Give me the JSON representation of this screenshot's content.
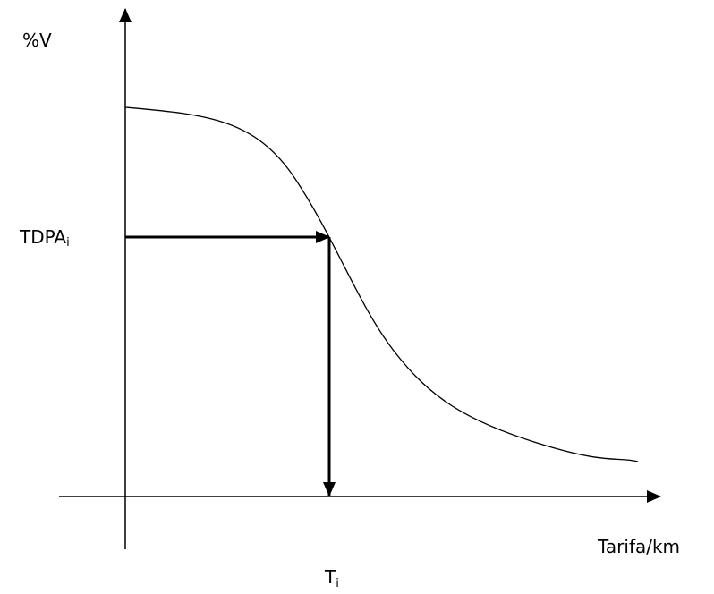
{
  "y_axis_label": "%V",
  "x_axis_label": "Tarifa/km",
  "y_marker": {
    "main": "TDPA",
    "sub": "i"
  },
  "x_marker": {
    "main": "T",
    "sub": "i"
  }
}
